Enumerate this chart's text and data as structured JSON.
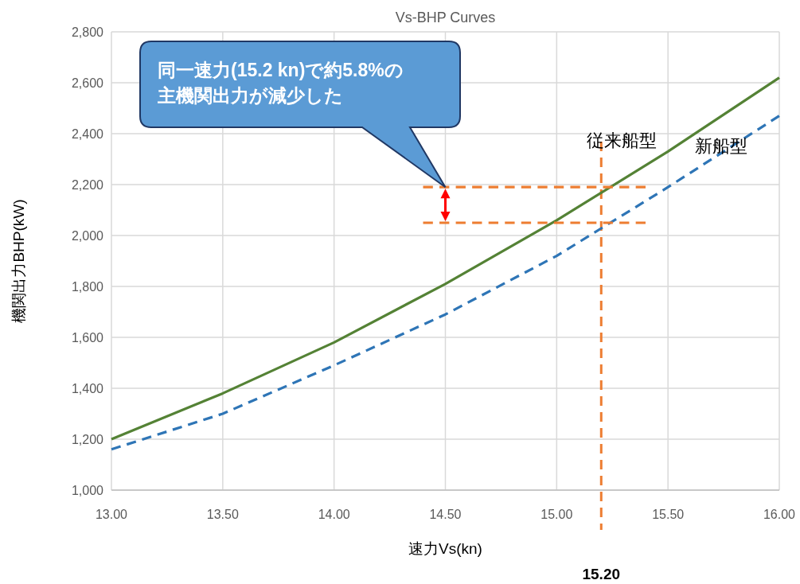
{
  "chart_data": {
    "type": "line",
    "title": "Vs-BHP Curves",
    "xlabel": "速力Vs(kn)",
    "ylabel": "機関出力BHP(kW)",
    "xlim": [
      13,
      16
    ],
    "ylim": [
      1000,
      2800
    ],
    "xticks": [
      {
        "value": 13,
        "label": "13.00"
      },
      {
        "value": 13.5,
        "label": "13.50"
      },
      {
        "value": 14,
        "label": "14.00"
      },
      {
        "value": 14.5,
        "label": "14.50"
      },
      {
        "value": 15,
        "label": "15.00"
      },
      {
        "value": 15.5,
        "label": "15.50"
      },
      {
        "value": 16,
        "label": "16.00"
      }
    ],
    "yticks": [
      {
        "value": 1000,
        "label": "1,000"
      },
      {
        "value": 1200,
        "label": "1,200"
      },
      {
        "value": 1400,
        "label": "1,400"
      },
      {
        "value": 1600,
        "label": "1,600"
      },
      {
        "value": 1800,
        "label": "1,800"
      },
      {
        "value": 2000,
        "label": "2,000"
      },
      {
        "value": 2200,
        "label": "2,200"
      },
      {
        "value": 2400,
        "label": "2,400"
      },
      {
        "value": 2600,
        "label": "2,600"
      },
      {
        "value": 2800,
        "label": "2,800"
      }
    ],
    "grid": true,
    "legend": false,
    "series": [
      {
        "name": "従来船型",
        "color": "#548235",
        "line_style": "solid",
        "x": [
          13,
          13.5,
          14,
          14.5,
          15,
          15.5,
          16
        ],
        "values": [
          1200,
          1380,
          1580,
          1810,
          2060,
          2330,
          2620
        ]
      },
      {
        "name": "新船型",
        "color": "#2e75b6",
        "line_style": "dashed",
        "x": [
          13,
          13.5,
          14,
          14.5,
          15,
          15.5,
          16
        ],
        "values": [
          1160,
          1300,
          1490,
          1690,
          1920,
          2190,
          2470
        ]
      },
      {
        "color": "#ed7d31",
        "line_style": "dashed",
        "x": [
          14.4,
          15.4
        ],
        "values": [
          2190,
          2190
        ]
      },
      {
        "color": "#ed7d31",
        "line_style": "dashed",
        "x": [
          14.4,
          15.4
        ],
        "values": [
          2050,
          2050
        ]
      }
    ],
    "ref_lines": [
      {
        "axis": "x",
        "value": 15.2,
        "label": "15.20",
        "color": "#ed7d31",
        "line_style": "dashed"
      }
    ],
    "annotations": [
      "同一速力(15.2 kn)で約5.8%の主機関出力が減少した"
    ]
  }
}
